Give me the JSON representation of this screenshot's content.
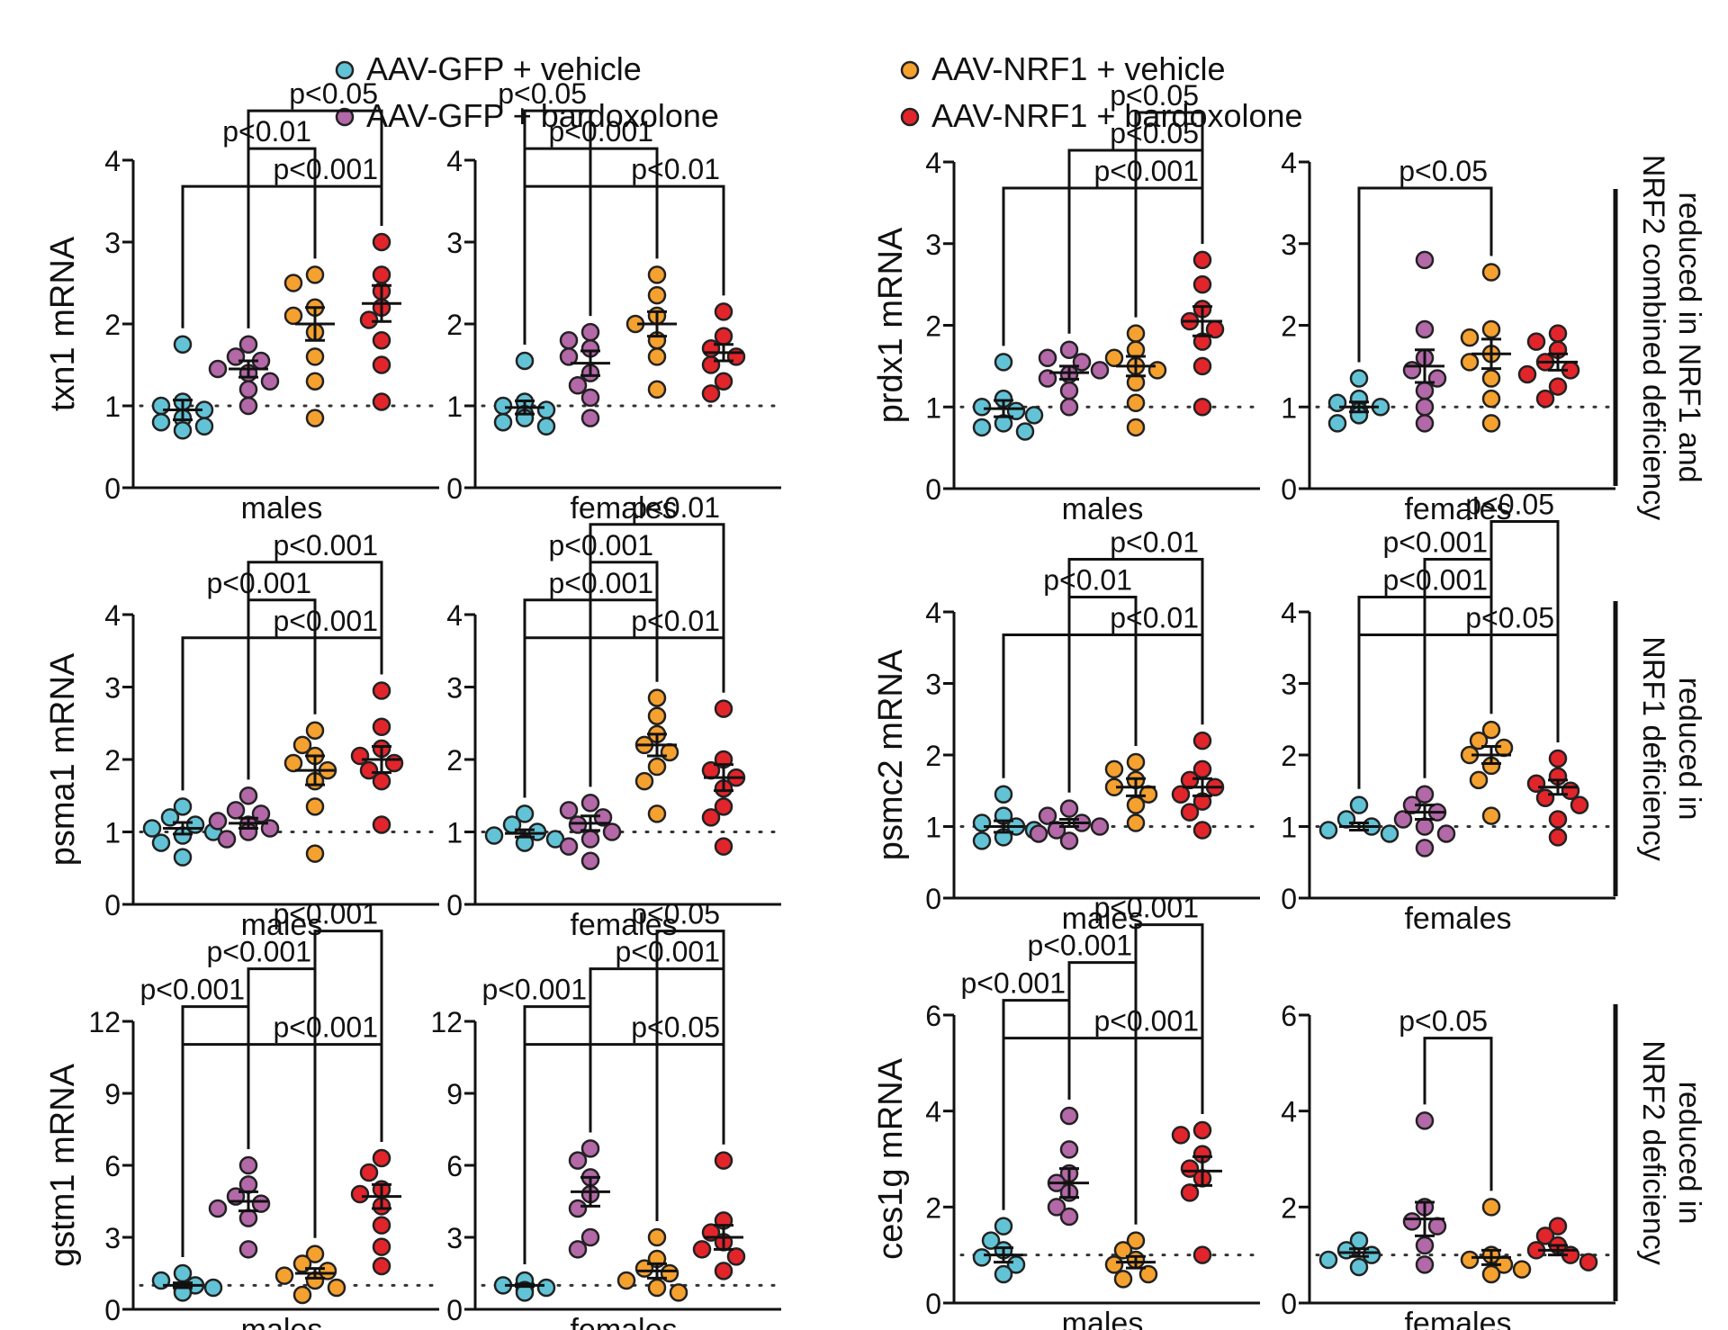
{
  "legend": [
    {
      "label": "AAV-GFP + vehicle",
      "color": "#62c3d6"
    },
    {
      "label": "AAV-GFP + bardoxolone",
      "color": "#b368a8"
    },
    {
      "label": "AAV-NRF1 + vehicle",
      "color": "#f5a12f"
    },
    {
      "label": "AAV-NRF1 + bardoxolone",
      "color": "#e2252b"
    }
  ],
  "side_labels": [
    {
      "lines": [
        "reduced in",
        "NRF2 combined deficiency",
        "NRF1 and"
      ],
      "text": "reduced in NRF1 and NRF2 combined deficiency"
    },
    {
      "text": "reduced in NRF1 deficiency"
    },
    {
      "text": "reduced in NRF2 deficiency"
    }
  ],
  "chart_data": [
    {
      "type": "scatter",
      "ylabel": "txn1 mRNA",
      "xlabel": "males",
      "ylim": [
        0,
        4
      ],
      "yticks": [
        "0",
        "1",
        "2",
        "3",
        "4"
      ],
      "groups": [
        "AAV-GFP + vehicle",
        "AAV-GFP + bardoxolone",
        "AAV-NRF1 + vehicle",
        "AAV-NRF1 + bardoxolone"
      ],
      "points": [
        [
          1.75,
          1.05,
          1.0,
          0.95,
          0.85,
          0.8,
          0.75,
          0.7
        ],
        [
          1.75,
          1.6,
          1.55,
          1.45,
          1.4,
          1.3,
          1.2,
          1.0
        ],
        [
          2.6,
          2.5,
          2.2,
          2.1,
          1.9,
          1.6,
          1.3,
          0.85
        ],
        [
          3.0,
          2.6,
          2.4,
          2.2,
          2.05,
          1.8,
          1.5,
          1.05
        ]
      ],
      "means": [
        0.95,
        1.45,
        2.0,
        2.25
      ],
      "sems": [
        0.12,
        0.1,
        0.2,
        0.22
      ],
      "comparisons": [
        {
          "label": "p<0.001",
          "groups": [
            1,
            4
          ]
        },
        {
          "label": "p<0.01",
          "groups": [
            2,
            3
          ]
        },
        {
          "label": "p<0.05",
          "groups": [
            2,
            4
          ]
        }
      ]
    },
    {
      "type": "scatter",
      "ylabel": "",
      "xlabel": "females",
      "ylim": [
        0,
        4
      ],
      "yticks": [
        "0",
        "1",
        "2",
        "3",
        "4"
      ],
      "points": [
        [
          1.55,
          1.05,
          1.0,
          0.95,
          0.9,
          0.85,
          0.8,
          0.75
        ],
        [
          1.9,
          1.8,
          1.7,
          1.6,
          1.4,
          1.25,
          1.1,
          0.85
        ],
        [
          2.6,
          2.35,
          2.1,
          2.0,
          1.8,
          1.6,
          1.2
        ],
        [
          2.15,
          1.85,
          1.7,
          1.6,
          1.5,
          1.3,
          1.15
        ]
      ],
      "means": [
        0.98,
        1.52,
        2.0,
        1.65
      ],
      "sems": [
        0.08,
        0.15,
        0.15,
        0.1
      ],
      "comparisons": [
        {
          "label": "p<0.01",
          "groups": [
            1,
            4
          ]
        },
        {
          "label": "p<0.001",
          "groups": [
            1,
            3
          ]
        },
        {
          "label": "p<0.05",
          "groups": [
            1,
            2
          ]
        }
      ]
    },
    {
      "type": "scatter",
      "ylabel": "prdx1 mRNA",
      "xlabel": "males",
      "ylim": [
        0,
        4
      ],
      "yticks": [
        "0",
        "1",
        "2",
        "3",
        "4"
      ],
      "points": [
        [
          1.55,
          1.1,
          1.0,
          0.95,
          0.9,
          0.8,
          0.75,
          0.7
        ],
        [
          1.7,
          1.6,
          1.55,
          1.45,
          1.4,
          1.35,
          1.2,
          1.0
        ],
        [
          1.9,
          1.7,
          1.6,
          1.5,
          1.45,
          1.3,
          1.05,
          0.75
        ],
        [
          2.8,
          2.5,
          2.2,
          2.05,
          1.95,
          1.8,
          1.5,
          1.0
        ]
      ],
      "means": [
        0.98,
        1.42,
        1.5,
        2.05
      ],
      "sems": [
        0.1,
        0.08,
        0.12,
        0.18
      ],
      "comparisons": [
        {
          "label": "p<0.001",
          "groups": [
            1,
            4
          ]
        },
        {
          "label": "p<0.05",
          "groups": [
            2,
            4
          ]
        },
        {
          "label": "p<0.05",
          "groups": [
            3,
            4
          ]
        }
      ]
    },
    {
      "type": "scatter",
      "ylabel": "",
      "xlabel": "females",
      "ylim": [
        0,
        4
      ],
      "yticks": [
        "0",
        "1",
        "2",
        "3",
        "4"
      ],
      "points": [
        [
          1.35,
          1.1,
          1.05,
          1.0,
          0.95,
          0.9,
          0.8
        ],
        [
          2.8,
          1.95,
          1.6,
          1.45,
          1.35,
          1.2,
          1.0,
          0.8
        ],
        [
          2.65,
          1.95,
          1.85,
          1.65,
          1.55,
          1.35,
          1.1,
          0.8
        ],
        [
          1.9,
          1.8,
          1.7,
          1.55,
          1.45,
          1.4,
          1.25,
          1.1
        ]
      ],
      "means": [
        1.0,
        1.5,
        1.65,
        1.55
      ],
      "sems": [
        0.06,
        0.2,
        0.18,
        0.1
      ],
      "comparisons": [
        {
          "label": "p<0.05",
          "groups": [
            1,
            3
          ]
        }
      ]
    },
    {
      "type": "scatter",
      "ylabel": "psma1 mRNA",
      "xlabel": "males",
      "ylim": [
        0,
        4
      ],
      "yticks": [
        "0",
        "1",
        "2",
        "3",
        "4"
      ],
      "points": [
        [
          1.35,
          1.2,
          1.1,
          1.05,
          1.0,
          0.95,
          0.85,
          0.65
        ],
        [
          1.5,
          1.3,
          1.25,
          1.15,
          1.1,
          1.05,
          1.0,
          0.9
        ],
        [
          2.4,
          2.2,
          2.05,
          1.95,
          1.85,
          1.7,
          1.35,
          0.7
        ],
        [
          2.95,
          2.45,
          2.15,
          2.05,
          1.95,
          1.85,
          1.7,
          1.1
        ]
      ],
      "means": [
        1.05,
        1.12,
        1.85,
        2.0
      ],
      "sems": [
        0.08,
        0.07,
        0.2,
        0.18
      ],
      "comparisons": [
        {
          "label": "p<0.001",
          "groups": [
            1,
            4
          ]
        },
        {
          "label": "p<0.001",
          "groups": [
            2,
            3
          ]
        },
        {
          "label": "p<0.001",
          "groups": [
            2,
            4
          ]
        }
      ]
    },
    {
      "type": "scatter",
      "ylabel": "",
      "xlabel": "females",
      "ylim": [
        0,
        4
      ],
      "yticks": [
        "0",
        "1",
        "2",
        "3",
        "4"
      ],
      "points": [
        [
          1.25,
          1.1,
          1.0,
          0.95,
          0.9,
          0.85
        ],
        [
          1.4,
          1.3,
          1.2,
          1.1,
          1.0,
          0.9,
          0.8,
          0.6
        ],
        [
          2.85,
          2.6,
          2.35,
          2.2,
          2.1,
          1.9,
          1.7,
          1.25
        ],
        [
          2.7,
          2.0,
          1.85,
          1.75,
          1.6,
          1.35,
          1.2,
          0.8
        ]
      ],
      "means": [
        0.98,
        1.12,
        2.2,
        1.75
      ],
      "sems": [
        0.05,
        0.1,
        0.15,
        0.18
      ],
      "comparisons": [
        {
          "label": "p<0.01",
          "groups": [
            1,
            4
          ]
        },
        {
          "label": "p<0.001",
          "groups": [
            1,
            3
          ]
        },
        {
          "label": "p<0.001",
          "groups": [
            2,
            3
          ]
        },
        {
          "label": "p<0.01",
          "groups": [
            2,
            4
          ]
        }
      ]
    },
    {
      "type": "scatter",
      "ylabel": "psmc2 mRNA",
      "xlabel": "males",
      "ylim": [
        0,
        4
      ],
      "yticks": [
        "0",
        "1",
        "2",
        "3",
        "4"
      ],
      "points": [
        [
          1.45,
          1.15,
          1.05,
          1.0,
          0.95,
          0.85,
          0.8
        ],
        [
          1.25,
          1.15,
          1.05,
          1.0,
          0.95,
          0.9,
          0.8
        ],
        [
          1.9,
          1.8,
          1.65,
          1.55,
          1.45,
          1.3,
          1.05
        ],
        [
          2.2,
          1.8,
          1.65,
          1.55,
          1.45,
          1.35,
          1.2,
          0.95
        ]
      ],
      "means": [
        1.0,
        1.05,
        1.55,
        1.55
      ],
      "sems": [
        0.08,
        0.05,
        0.12,
        0.12
      ],
      "comparisons": [
        {
          "label": "p<0.01",
          "groups": [
            1,
            4
          ]
        },
        {
          "label": "p<0.01",
          "groups": [
            2,
            3
          ]
        },
        {
          "label": "p<0.01",
          "groups": [
            2,
            4
          ]
        }
      ]
    },
    {
      "type": "scatter",
      "ylabel": "",
      "xlabel": "females",
      "ylim": [
        0,
        4
      ],
      "yticks": [
        "0",
        "1",
        "2",
        "3",
        "4"
      ],
      "points": [
        [
          1.3,
          1.1,
          1.0,
          0.95,
          0.9
        ],
        [
          1.45,
          1.3,
          1.2,
          1.1,
          1.0,
          0.9,
          0.7
        ],
        [
          2.35,
          2.2,
          2.1,
          2.0,
          1.85,
          1.65,
          1.15
        ],
        [
          1.95,
          1.7,
          1.6,
          1.5,
          1.4,
          1.3,
          1.1,
          0.85
        ]
      ],
      "means": [
        1.0,
        1.2,
        2.0,
        1.55
      ],
      "sems": [
        0.05,
        0.1,
        0.12,
        0.1
      ],
      "comparisons": [
        {
          "label": "p<0.05",
          "groups": [
            1,
            4
          ]
        },
        {
          "label": "p<0.001",
          "groups": [
            1,
            3
          ]
        },
        {
          "label": "p<0.001",
          "groups": [
            2,
            3
          ]
        },
        {
          "label": "p<0.05",
          "groups": [
            3,
            4
          ]
        }
      ]
    },
    {
      "type": "scatter",
      "ylabel": "gstm1 mRNA",
      "xlabel": "males",
      "ylim": [
        0,
        12
      ],
      "yticks": [
        "0",
        "3",
        "6",
        "9",
        "12"
      ],
      "points": [
        [
          1.5,
          1.2,
          1.0,
          0.9,
          0.8,
          0.7
        ],
        [
          6.0,
          5.2,
          4.7,
          4.4,
          4.2,
          3.8,
          2.5
        ],
        [
          2.3,
          1.9,
          1.6,
          1.4,
          1.2,
          0.9,
          0.6
        ],
        [
          6.3,
          5.7,
          5.0,
          4.8,
          4.3,
          3.5,
          2.6,
          1.8
        ]
      ],
      "means": [
        1.0,
        4.5,
        1.5,
        4.7
      ],
      "sems": [
        0.1,
        0.4,
        0.2,
        0.5
      ],
      "comparisons": [
        {
          "label": "p<0.001",
          "groups": [
            1,
            4
          ]
        },
        {
          "label": "p<0.001",
          "groups": [
            1,
            2
          ]
        },
        {
          "label": "p<0.001",
          "groups": [
            2,
            3
          ]
        },
        {
          "label": "p<0.001",
          "groups": [
            3,
            4
          ]
        }
      ]
    },
    {
      "type": "scatter",
      "ylabel": "",
      "xlabel": "females",
      "ylim": [
        0,
        12
      ],
      "yticks": [
        "0",
        "3",
        "6",
        "9",
        "12"
      ],
      "points": [
        [
          1.2,
          1.0,
          0.9,
          0.8,
          0.7
        ],
        [
          6.7,
          6.2,
          5.5,
          4.8,
          4.2,
          3.0,
          2.5
        ],
        [
          3.0,
          2.1,
          1.7,
          1.5,
          1.2,
          0.9,
          0.7
        ],
        [
          6.2,
          3.7,
          3.2,
          2.8,
          2.5,
          2.2,
          1.6
        ]
      ],
      "means": [
        1.0,
        4.9,
        1.6,
        3.0
      ],
      "sems": [
        0.05,
        0.6,
        0.3,
        0.5
      ],
      "comparisons": [
        {
          "label": "p<0.05",
          "groups": [
            1,
            4
          ]
        },
        {
          "label": "p<0.001",
          "groups": [
            1,
            2
          ]
        },
        {
          "label": "p<0.001",
          "groups": [
            2,
            4
          ]
        },
        {
          "label": "p<0.05",
          "groups": [
            3,
            4
          ]
        }
      ]
    },
    {
      "type": "scatter",
      "ylabel": "ces1g mRNA",
      "xlabel": "males",
      "ylim": [
        0,
        6
      ],
      "yticks": [
        "0",
        "2",
        "4",
        "6"
      ],
      "points": [
        [
          1.6,
          1.3,
          1.1,
          0.95,
          0.8,
          0.6
        ],
        [
          3.9,
          3.2,
          2.7,
          2.5,
          2.3,
          2.0,
          1.8
        ],
        [
          1.3,
          1.1,
          0.9,
          0.8,
          0.6,
          0.5
        ],
        [
          3.6,
          3.5,
          3.1,
          2.8,
          2.6,
          2.3,
          1.0
        ]
      ],
      "means": [
        1.0,
        2.5,
        0.85,
        2.75
      ],
      "sems": [
        0.15,
        0.3,
        0.12,
        0.3
      ],
      "comparisons": [
        {
          "label": "p<0.001",
          "groups": [
            1,
            4
          ]
        },
        {
          "label": "p<0.001",
          "groups": [
            1,
            2
          ]
        },
        {
          "label": "p<0.001",
          "groups": [
            2,
            3
          ]
        },
        {
          "label": "p<0.001",
          "groups": [
            3,
            4
          ]
        }
      ]
    },
    {
      "type": "scatter",
      "ylabel": "",
      "xlabel": "females",
      "ylim": [
        0,
        6
      ],
      "yticks": [
        "0",
        "2",
        "4",
        "6"
      ],
      "points": [
        [
          1.3,
          1.1,
          1.0,
          0.9,
          0.75
        ],
        [
          3.8,
          2.0,
          1.7,
          1.6,
          1.2,
          0.8
        ],
        [
          2.0,
          1.0,
          0.9,
          0.8,
          0.7,
          0.6
        ],
        [
          1.6,
          1.4,
          1.2,
          1.1,
          1.0,
          0.85
        ]
      ],
      "means": [
        1.05,
        1.75,
        0.95,
        1.1
      ],
      "sems": [
        0.08,
        0.35,
        0.15,
        0.1
      ],
      "comparisons": [
        {
          "label": "p<0.05",
          "groups": [
            2,
            3
          ]
        }
      ]
    }
  ]
}
